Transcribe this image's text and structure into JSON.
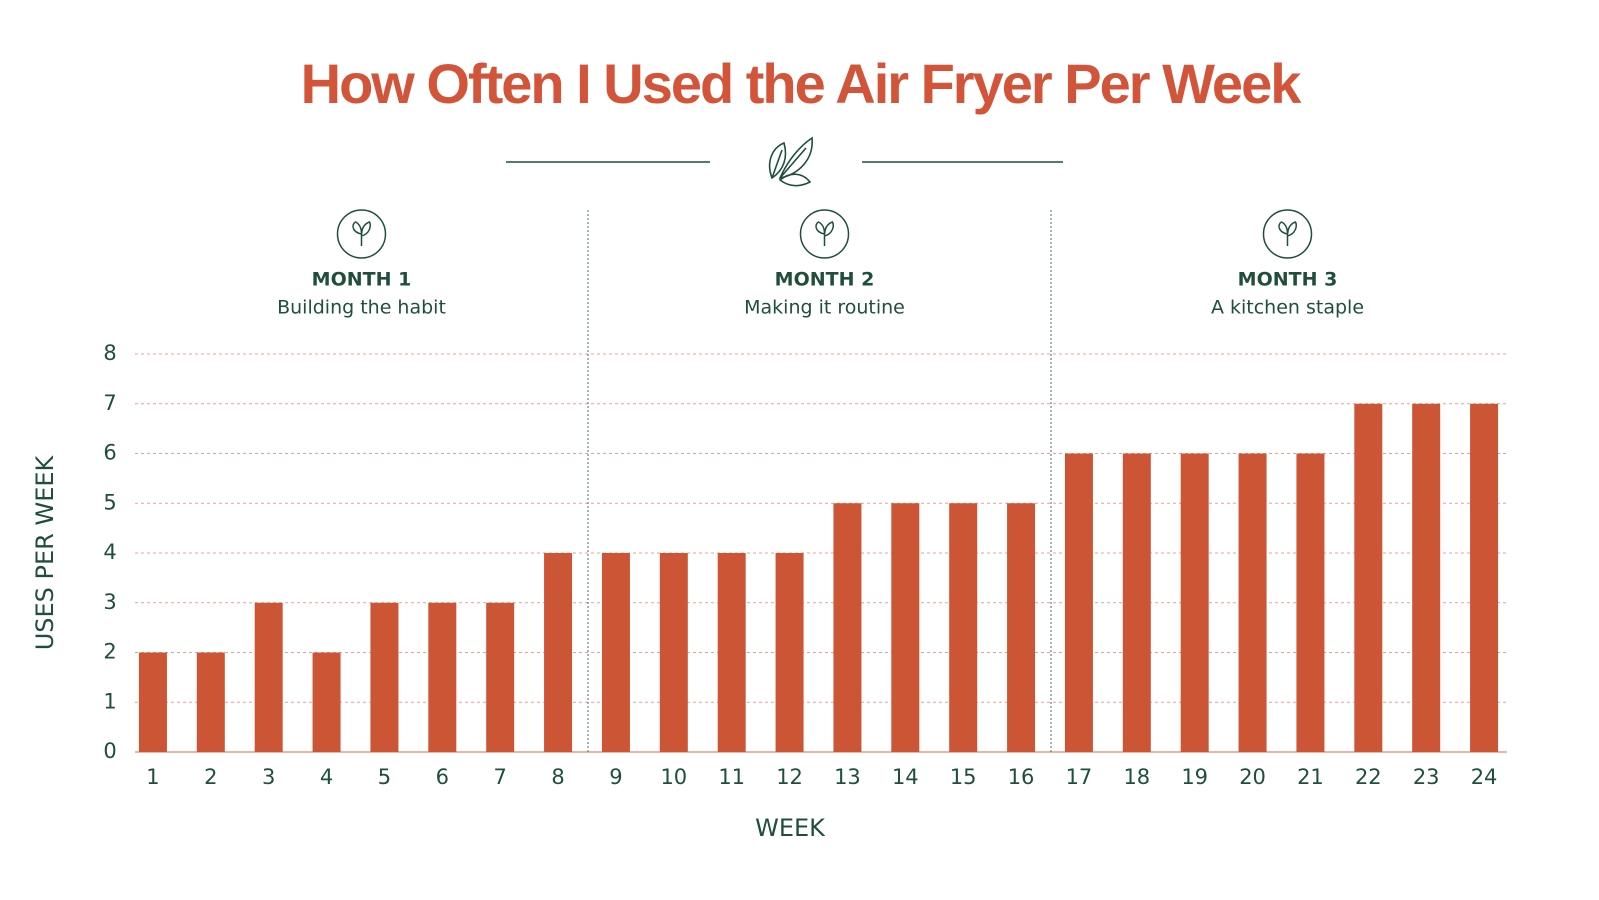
{
  "chart_data": {
    "type": "bar",
    "title": "How Often I Used the Air Fryer Per Week",
    "x_label": "WEEK",
    "y_label": "USES PER WEEK",
    "categories": [
      "1",
      "2",
      "3",
      "4",
      "5",
      "6",
      "7",
      "8",
      "9",
      "10",
      "11",
      "12",
      "13",
      "14",
      "15",
      "16",
      "17",
      "18",
      "19",
      "20",
      "21",
      "22",
      "23",
      "24"
    ],
    "values": [
      2,
      2,
      3,
      2,
      3,
      3,
      3,
      4,
      4,
      4,
      4,
      4,
      5,
      5,
      5,
      5,
      6,
      6,
      6,
      6,
      6,
      7,
      7,
      7
    ],
    "color": "#cc5535",
    "ylim": [
      0,
      8
    ],
    "yticks": [
      0,
      1,
      2,
      3,
      4,
      5,
      6,
      7,
      8
    ],
    "grid": true,
    "annotations": [
      {
        "label": "MONTH 1",
        "text": "Building the habit"
      },
      {
        "label": "MONTH 2",
        "text": "Making it routine"
      },
      {
        "label": "MONTH 3",
        "text": "A kitchen staple"
      }
    ]
  }
}
